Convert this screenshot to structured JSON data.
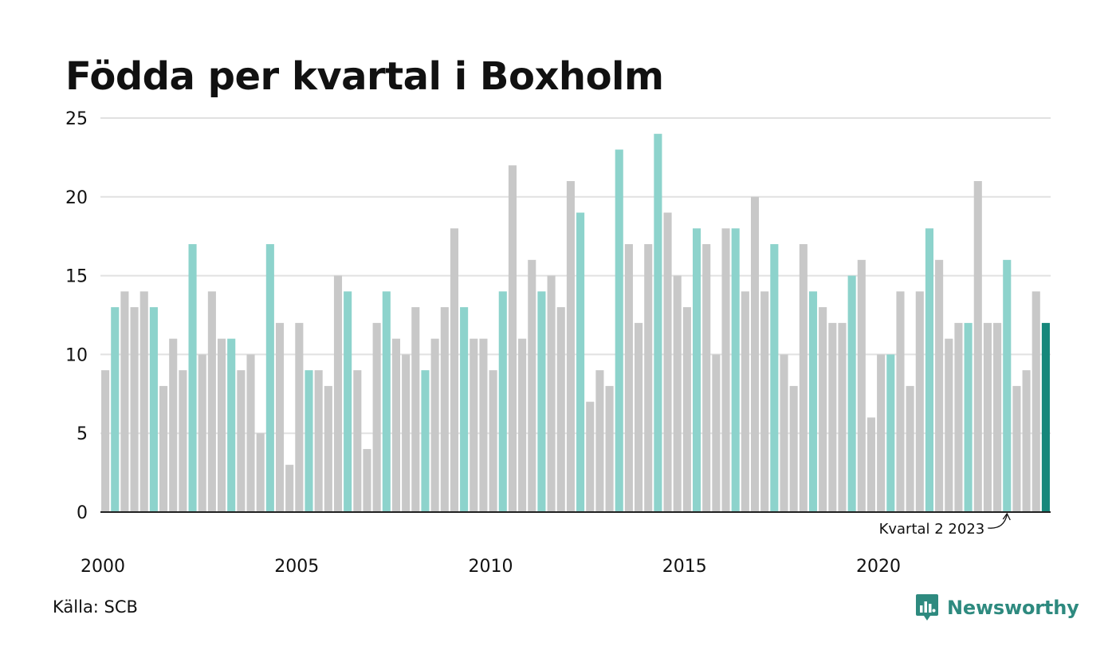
{
  "chart_data": {
    "type": "bar",
    "title": "Födda per kvartal i Boxholm",
    "source": "Källa: SCB",
    "ylim": [
      0,
      25
    ],
    "yticks": [
      0,
      5,
      10,
      15,
      20,
      25
    ],
    "xticks": [
      "2000",
      "2005",
      "2010",
      "2015",
      "2020"
    ],
    "grid": true,
    "start_year": 2000,
    "values": [
      9,
      13,
      14,
      13,
      14,
      13,
      8,
      11,
      9,
      17,
      10,
      14,
      11,
      11,
      9,
      10,
      5,
      17,
      12,
      3,
      12,
      9,
      9,
      8,
      15,
      14,
      9,
      4,
      12,
      14,
      11,
      10,
      13,
      9,
      11,
      13,
      18,
      13,
      11,
      11,
      9,
      14,
      22,
      11,
      16,
      14,
      15,
      13,
      21,
      19,
      7,
      9,
      8,
      23,
      17,
      12,
      17,
      24,
      19,
      15,
      13,
      18,
      17,
      10,
      18,
      18,
      14,
      20,
      14,
      17,
      10,
      8,
      17,
      14,
      13,
      12,
      12,
      15,
      16,
      6,
      10,
      10,
      14,
      8,
      14,
      18,
      16,
      11,
      12,
      12,
      21,
      12,
      12,
      16,
      8,
      9,
      14,
      12
    ],
    "highlight_quarter": 2,
    "annotation": {
      "label": "Kvartal 2 2023",
      "index": 93
    },
    "colors": {
      "base": "#c8c8c8",
      "same_quarter": "#8dd3cc",
      "latest": "#16877b",
      "grid": "#e1e1e1",
      "axis": "#222222"
    }
  },
  "branding": {
    "name": "Newsworthy",
    "icon": "newsworthy-logo-icon",
    "color": "#2e8a7f"
  }
}
